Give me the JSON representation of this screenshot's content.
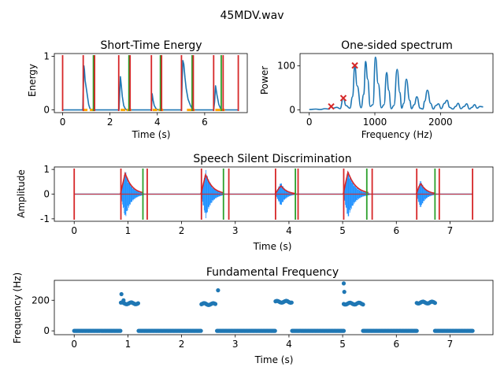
{
  "suptitle": "45MDV.wav",
  "colors": {
    "signal": "#1f77b4",
    "waveform": "#1e90ff",
    "envelope": "#d62728",
    "start_marker": "#d62728",
    "end_marker": "#2ca02c",
    "low_energy": "#ffa500"
  },
  "chart_data": [
    {
      "type": "line",
      "title": "Short-Time Energy",
      "xlabel": "Time (s)",
      "ylabel": "Energy",
      "xlim": [
        -0.35,
        7.8
      ],
      "ylim": [
        -0.05,
        1.05
      ],
      "xticks": [
        0,
        2,
        4,
        6
      ],
      "yticks": [
        0,
        1
      ],
      "grid": false,
      "series": [
        {
          "x": [
            0,
            0.85,
            0.88,
            0.9,
            0.92,
            0.95,
            1.0,
            1.05,
            1.1,
            1.15,
            1.2,
            2.38,
            2.41,
            2.44,
            2.48,
            2.52,
            2.58,
            2.65,
            2.7,
            3.75,
            3.78,
            3.82,
            3.87,
            3.95,
            4.05,
            5.02,
            5.05,
            5.08,
            5.12,
            5.17,
            5.22,
            5.3,
            5.4,
            5.5,
            6.38,
            6.42,
            6.46,
            6.52,
            6.6,
            6.7,
            7.42
          ],
          "y": [
            0,
            0,
            0.5,
            0.82,
            0.75,
            0.55,
            0.4,
            0.25,
            0.1,
            0.03,
            0,
            0,
            0.3,
            0.62,
            0.45,
            0.25,
            0.08,
            0.02,
            0,
            0,
            0.3,
            0.18,
            0.08,
            0.02,
            0,
            0,
            0.55,
            0.92,
            0.85,
            0.6,
            0.4,
            0.2,
            0.08,
            0,
            0,
            0.15,
            0.45,
            0.28,
            0.1,
            0,
            0
          ]
        }
      ],
      "low_energy_marks": [
        0.95,
        1.25,
        2.55,
        2.8,
        3.9,
        4.15,
        5.35,
        5.48,
        6.55,
        6.75
      ],
      "start_markers": [
        0,
        0.87,
        2.37,
        3.75,
        5.02,
        6.38
      ],
      "end_markers": [
        1.3,
        2.8,
        4.13,
        5.47,
        6.7
      ],
      "red_end_markers": [
        1.35,
        2.85,
        4.18,
        5.52,
        6.78,
        7.42
      ]
    },
    {
      "type": "line",
      "title": "One-sided spectrum",
      "xlabel": "Frequency (Hz)",
      "ylabel": "Power",
      "xlim": [
        -140,
        2800
      ],
      "ylim": [
        -6,
        128
      ],
      "xticks": [
        0,
        1000,
        2000
      ],
      "yticks": [
        0,
        100
      ],
      "grid": false,
      "peaks": [
        [
          335,
          8
        ],
        [
          520,
          27
        ],
        [
          695,
          101
        ]
      ],
      "series": [
        {
          "x": [
            0,
            100,
            170,
            240,
            300,
            335,
            360,
            420,
            470,
            520,
            560,
            620,
            660,
            695,
            730,
            790,
            830,
            860,
            890,
            930,
            970,
            1010,
            1050,
            1100,
            1140,
            1180,
            1210,
            1250,
            1290,
            1340,
            1380,
            1410,
            1440,
            1480,
            1530,
            1560,
            1600,
            1640,
            1690,
            1730,
            1760,
            1800,
            1850,
            1890,
            1930,
            1970,
            2010,
            2060,
            2100,
            2140,
            2190,
            2230,
            2270,
            2310,
            2360,
            2400,
            2440,
            2480,
            2520,
            2560,
            2600,
            2650
          ],
          "y": [
            1,
            2,
            1,
            3,
            2,
            8,
            4,
            6,
            3,
            27,
            10,
            4,
            30,
            101,
            55,
            5,
            35,
            110,
            70,
            8,
            12,
            120,
            60,
            5,
            12,
            85,
            45,
            3,
            10,
            92,
            40,
            4,
            15,
            70,
            22,
            3,
            12,
            30,
            4,
            2,
            20,
            45,
            15,
            2,
            10,
            14,
            3,
            15,
            22,
            6,
            2,
            8,
            15,
            3,
            8,
            14,
            2,
            6,
            12,
            4,
            8,
            7
          ]
        }
      ]
    },
    {
      "type": "line",
      "title": "Speech Silent Discrimination",
      "xlabel": "Time (s)",
      "ylabel": "Amplitude",
      "xlim": [
        -0.37,
        7.8
      ],
      "ylim": [
        -1.1,
        1.1
      ],
      "xticks": [
        0,
        1,
        2,
        3,
        4,
        5,
        6,
        7
      ],
      "yticks": [
        -1,
        0,
        1
      ],
      "grid": false,
      "voiced_segments": [
        {
          "start": 0.86,
          "peak": 0.95,
          "end": 1.3,
          "amp": 1.0,
          "env": 0.85
        },
        {
          "start": 2.36,
          "peak": 2.45,
          "end": 2.8,
          "amp": 1.0,
          "env": 0.8
        },
        {
          "start": 3.74,
          "peak": 3.85,
          "end": 4.15,
          "amp": 0.5,
          "env": 0.35
        },
        {
          "start": 5.01,
          "peak": 5.1,
          "end": 5.5,
          "amp": 1.0,
          "env": 0.9
        },
        {
          "start": 6.37,
          "peak": 6.45,
          "end": 6.75,
          "amp": 0.6,
          "env": 0.45
        }
      ],
      "start_markers": [
        0,
        0.87,
        2.37,
        3.75,
        5.02,
        6.38
      ],
      "end_markers": [
        1.28,
        2.78,
        4.12,
        5.45,
        6.72
      ],
      "red_end_markers": [
        1.36,
        2.88,
        4.17,
        5.55,
        6.8,
        7.42
      ]
    },
    {
      "type": "scatter",
      "title": "Fundamental Frequency",
      "xlabel": "Time (s)",
      "ylabel": "Frequency (Hz)",
      "xlim": [
        -0.37,
        7.8
      ],
      "ylim": [
        -25,
        330
      ],
      "xticks": [
        0,
        1,
        2,
        3,
        4,
        5,
        6,
        7
      ],
      "yticks": [
        0,
        200
      ],
      "grid": false,
      "voiced_clusters": [
        {
          "start": 0.87,
          "end": 1.2,
          "f0": 180,
          "outliers": [
            [
              0.88,
              240
            ],
            [
              0.92,
              200
            ]
          ]
        },
        {
          "start": 2.37,
          "end": 2.65,
          "f0": 175,
          "outliers": [
            [
              2.68,
              265
            ]
          ]
        },
        {
          "start": 3.75,
          "end": 4.05,
          "f0": 190,
          "outliers": []
        },
        {
          "start": 5.02,
          "end": 5.38,
          "f0": 178,
          "outliers": [
            [
              5.02,
              310
            ],
            [
              5.03,
              255
            ]
          ]
        },
        {
          "start": 6.38,
          "end": 6.72,
          "f0": 185,
          "outliers": []
        }
      ],
      "x_end": 7.42
    }
  ]
}
